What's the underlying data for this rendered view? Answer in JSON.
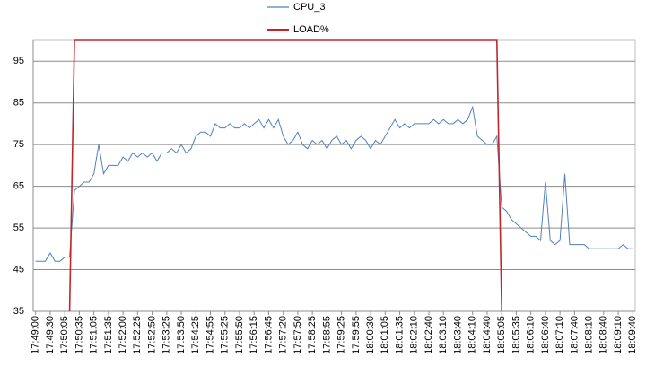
{
  "chart_data": {
    "type": "line",
    "categories": [
      "17:49:00",
      null,
      null,
      "17:49:30",
      null,
      null,
      "17:50:05",
      null,
      null,
      "17:50:35",
      null,
      null,
      "17:51:05",
      null,
      null,
      "17:51:35",
      null,
      null,
      "17:52:00",
      null,
      null,
      "17:52:25",
      null,
      null,
      "17:52:50",
      null,
      null,
      "17:53:25",
      null,
      null,
      "17:53:50",
      null,
      null,
      "17:54:25",
      null,
      null,
      "17:54:55",
      null,
      null,
      "17:55:25",
      null,
      null,
      "17:55:50",
      null,
      null,
      "17:56:15",
      null,
      null,
      "17:56:45",
      null,
      null,
      "17:57:20",
      null,
      null,
      "17:57:50",
      null,
      null,
      "17:58:25",
      null,
      null,
      "17:58:55",
      null,
      null,
      "17:59:25",
      null,
      null,
      "17:59:55",
      null,
      null,
      "18:00:30",
      null,
      null,
      "18:01:05",
      null,
      null,
      "18:01:35",
      null,
      null,
      "18:02:10",
      null,
      null,
      "18:02:40",
      null,
      null,
      "18:03:10",
      null,
      null,
      "18:03:40",
      null,
      null,
      "18:04:10",
      null,
      null,
      "18:04:40",
      null,
      null,
      "18:05:05",
      null,
      null,
      "18:05:35",
      null,
      null,
      "18:06:10",
      null,
      null,
      "18:06:40",
      null,
      null,
      "18:07:10",
      null,
      null,
      "18:07:40",
      null,
      null,
      "18:08:10",
      null,
      null,
      "18:08:40",
      null,
      null,
      "18:09:10",
      null,
      null,
      "18:09:40"
    ],
    "series": [
      {
        "name": "CPU_3",
        "color": "#4f81bd",
        "values": [
          47,
          47,
          47,
          49,
          47,
          47,
          48,
          48,
          64,
          65,
          66,
          66,
          68,
          75,
          68,
          70,
          70,
          70,
          72,
          71,
          73,
          72,
          73,
          72,
          73,
          71,
          73,
          73,
          74,
          73,
          75,
          73,
          74,
          77,
          78,
          78,
          77,
          80,
          79,
          79,
          80,
          79,
          79,
          80,
          79,
          80,
          81,
          79,
          81,
          79,
          81,
          77,
          75,
          76,
          78,
          75,
          74,
          76,
          75,
          76,
          74,
          76,
          77,
          75,
          76,
          74,
          76,
          77,
          76,
          74,
          76,
          75,
          77,
          79,
          81,
          79,
          80,
          79,
          80,
          80,
          80,
          80,
          81,
          80,
          81,
          80,
          80,
          81,
          80,
          81,
          84,
          77,
          76,
          75,
          75,
          77,
          60,
          59,
          57,
          56,
          55,
          54,
          53,
          53,
          52,
          66,
          52,
          51,
          52,
          68,
          51,
          51,
          51,
          51,
          50,
          50,
          50,
          50,
          50,
          50,
          50,
          51,
          50,
          50
        ]
      },
      {
        "name": "LOAD%",
        "color": "#c0272d",
        "values": [
          null,
          null,
          null,
          null,
          null,
          null,
          null,
          35,
          100,
          100,
          100,
          100,
          100,
          100,
          100,
          100,
          100,
          100,
          100,
          100,
          100,
          100,
          100,
          100,
          100,
          100,
          100,
          100,
          100,
          100,
          100,
          100,
          100,
          100,
          100,
          100,
          100,
          100,
          100,
          100,
          100,
          100,
          100,
          100,
          100,
          100,
          100,
          100,
          100,
          100,
          100,
          100,
          100,
          100,
          100,
          100,
          100,
          100,
          100,
          100,
          100,
          100,
          100,
          100,
          100,
          100,
          100,
          100,
          100,
          100,
          100,
          100,
          100,
          100,
          100,
          100,
          100,
          100,
          100,
          100,
          100,
          100,
          100,
          100,
          100,
          100,
          100,
          100,
          100,
          100,
          100,
          100,
          100,
          100,
          100,
          100,
          35,
          null,
          null,
          null,
          null,
          null,
          null,
          null,
          null,
          null,
          null,
          null,
          null,
          null,
          null,
          null,
          null,
          null,
          null,
          null,
          null,
          null,
          null,
          null,
          null,
          null,
          null,
          null
        ]
      }
    ],
    "ylim": [
      35,
      100
    ],
    "yticks": [
      35,
      45,
      55,
      65,
      75,
      85,
      95
    ],
    "grid": true,
    "legend": "top"
  }
}
